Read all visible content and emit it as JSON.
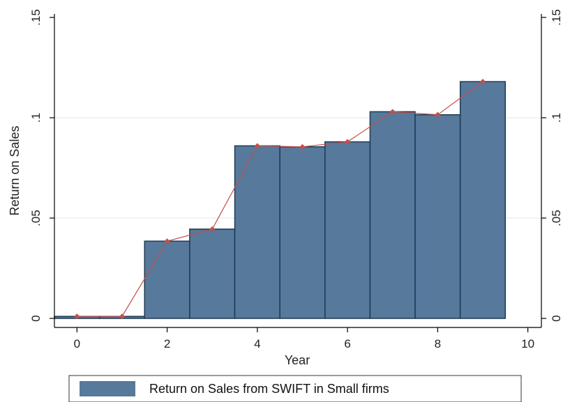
{
  "chart_data": {
    "type": "bar",
    "xlabel": "Year",
    "ylabel": "Return on Sales",
    "xlim": [
      -0.5,
      10.3
    ],
    "ylim": [
      0,
      0.15
    ],
    "x_ticks": [
      0,
      2,
      4,
      6,
      8,
      10
    ],
    "x_tick_labels": [
      "0",
      "2",
      "4",
      "6",
      "8",
      "10"
    ],
    "y_ticks": [
      0,
      0.05,
      0.1,
      0.15
    ],
    "y_tick_labels": [
      "0",
      ".05",
      ".1",
      ".15"
    ],
    "grid": "horizontal",
    "legend_position": "bottom",
    "categories": [
      0,
      1,
      2,
      3,
      4,
      5,
      6,
      7,
      8,
      9
    ],
    "series": [
      {
        "name": "Return on Sales from SWIFT in Small firms",
        "type": "bar",
        "color": "#56799c",
        "values": [
          0.001,
          0.001,
          0.0385,
          0.0445,
          0.086,
          0.0855,
          0.088,
          0.103,
          0.1015,
          0.118
        ]
      },
      {
        "type": "line",
        "color": "#c0504d",
        "values": [
          0.001,
          0.001,
          0.0385,
          0.0445,
          0.086,
          0.0855,
          0.088,
          0.103,
          0.1015,
          0.118
        ]
      }
    ]
  }
}
